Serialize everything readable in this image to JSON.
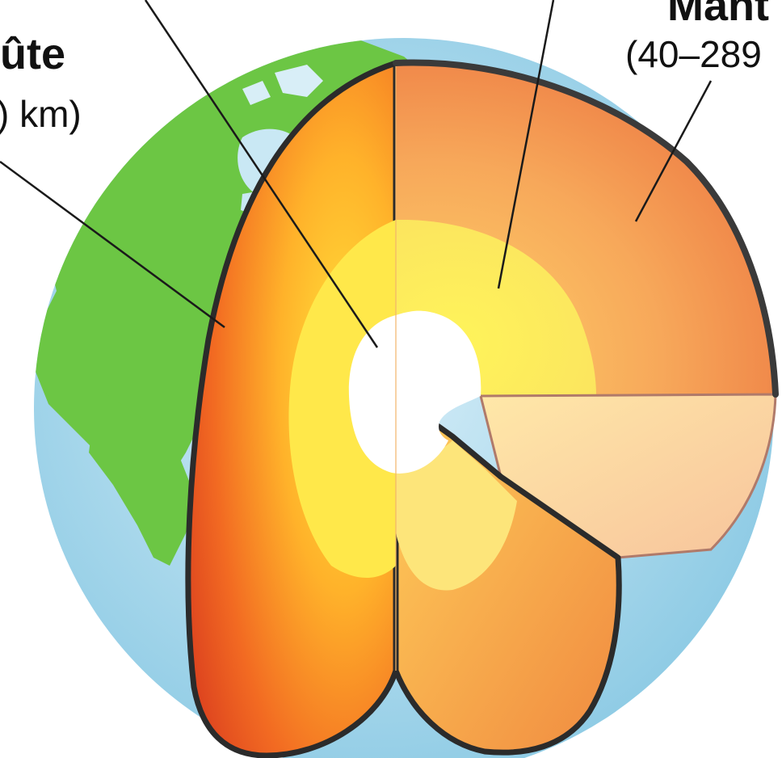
{
  "labels": {
    "crust": {
      "title": "ûte",
      "range": ") km)"
    },
    "mantle": {
      "title": "Mant",
      "range": "(40–289"
    }
  },
  "colors": {
    "ocean": "#a9d7ec",
    "land": "#6cc644",
    "outline": "#2b2b2b",
    "crust_shell": "#e9541f",
    "mantle": "#f39a52",
    "outer_core": "#fbe95a",
    "inner_core": "#ffffff",
    "pointer": "#1a1a1a"
  },
  "icons": {
    "globe": "earth-globe-illustration",
    "cutaway": "earth-layers-cutaway"
  }
}
